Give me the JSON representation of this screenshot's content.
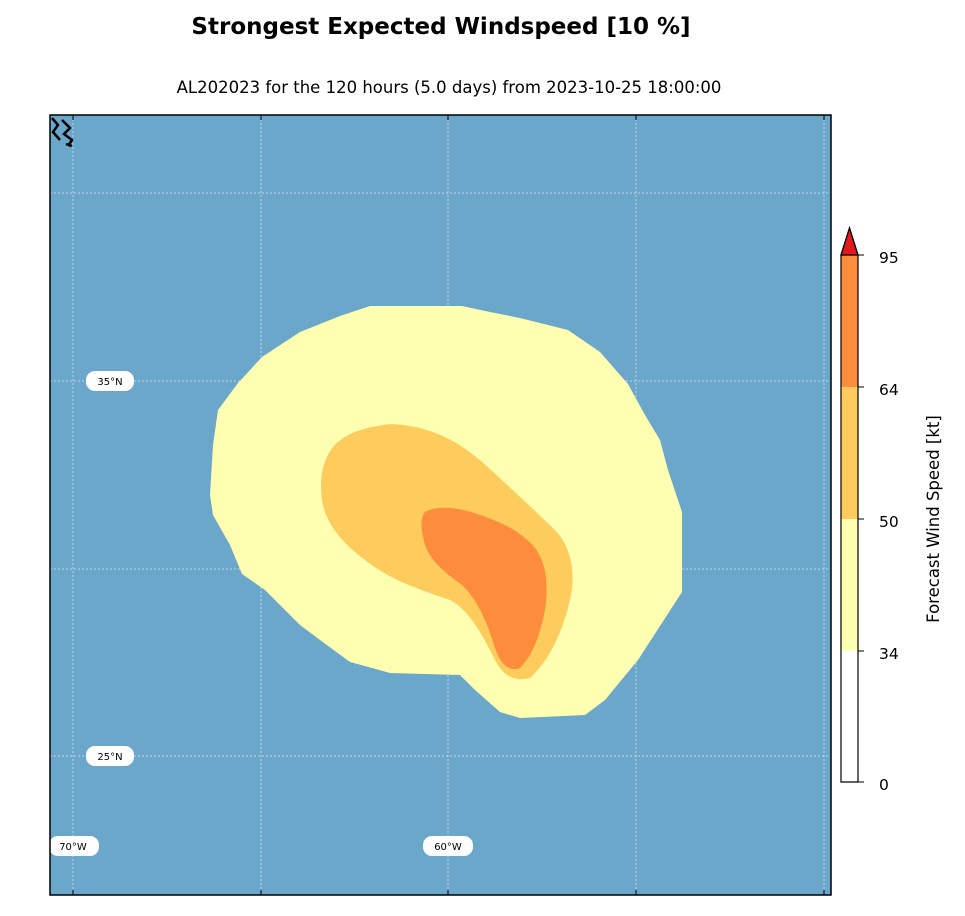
{
  "title": "Strongest Expected Windspeed [10 %]",
  "subtitle": "AL202023 for the 120 hours (5.0 days) from 2023-10-25 18:00:00",
  "map": {
    "ocean_color": "#6ba6cb",
    "gridlines": {
      "lat_labels": [
        "35°N",
        "25°N"
      ],
      "lon_labels": [
        "70°W",
        "60°W"
      ]
    },
    "contours": [
      {
        "level": "34-50 kt",
        "color": "#ffffb2"
      },
      {
        "level": "50-64 kt",
        "color": "#fecc5c"
      },
      {
        "level": "64-95 kt",
        "color": "#fd8d3c"
      }
    ]
  },
  "colorbar": {
    "label": "Forecast Wind Speed [kt]",
    "ticks": [
      "0",
      "34",
      "50",
      "64",
      "95"
    ],
    "colors": [
      "#ffffff",
      "#ffffb2",
      "#fecc5c",
      "#fd8d3c"
    ],
    "extend_color": "#e31a1c"
  }
}
